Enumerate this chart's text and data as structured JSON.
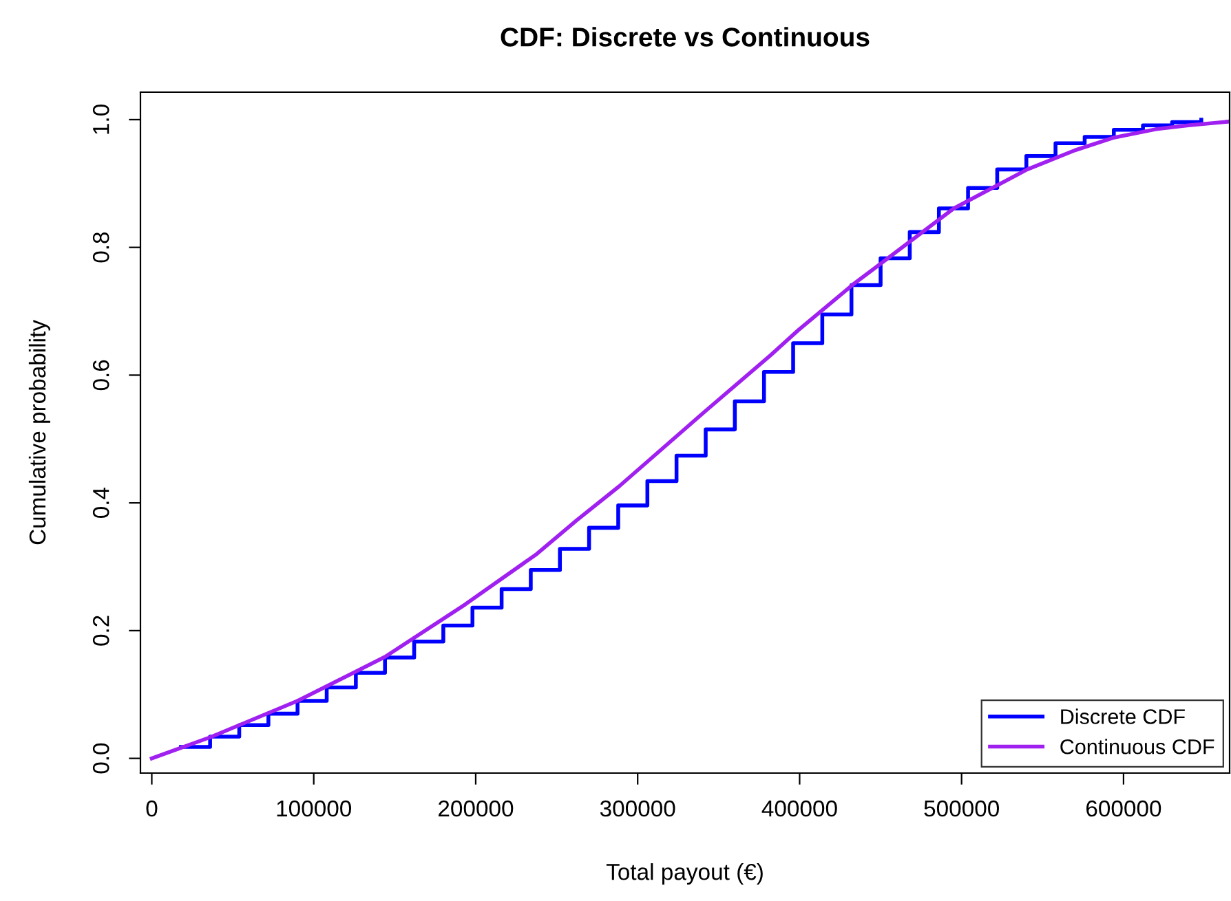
{
  "chart_data": {
    "type": "line",
    "title": "CDF: Discrete vs Continuous",
    "xlabel": "Total payout (€)",
    "ylabel": "Cumulative probability",
    "xlim": [
      -7000,
      665500
    ],
    "xticks": [
      0,
      100000,
      200000,
      300000,
      400000,
      500000,
      600000
    ],
    "ylim": [
      -0.023,
      1.043
    ],
    "yticks": [
      {
        "value": 0,
        "label": "0.0"
      },
      {
        "value": 0.2,
        "label": "0.2"
      },
      {
        "value": 0.4,
        "label": "0.4"
      },
      {
        "value": 0.6,
        "label": "0.6"
      },
      {
        "value": 0.8,
        "label": "0.8"
      },
      {
        "value": 1,
        "label": "1.0"
      }
    ],
    "grid": false,
    "legend": "bottom right",
    "marker": "none",
    "line_style": "solid",
    "series": [
      {
        "name": "Discrete CDF",
        "type": "step",
        "color": "#0000ff",
        "x": [
          18000,
          36000,
          54000,
          72000,
          90000,
          108000,
          126000,
          144000,
          162000,
          180000,
          198000,
          216000,
          234000,
          252000,
          270000,
          288000,
          306000,
          324000,
          342000,
          360000,
          378000,
          396000,
          414000,
          432000,
          450000,
          468000,
          486000,
          504000,
          522000,
          540000,
          558000,
          576000,
          594000,
          612000,
          630000,
          648000
        ],
        "values": [
          0.018,
          0.034,
          0.052,
          0.07,
          0.09,
          0.111,
          0.134,
          0.158,
          0.183,
          0.208,
          0.236,
          0.265,
          0.295,
          0.328,
          0.361,
          0.396,
          0.434,
          0.474,
          0.515,
          0.559,
          0.605,
          0.65,
          0.695,
          0.741,
          0.783,
          0.824,
          0.861,
          0.893,
          0.922,
          0.943,
          0.963,
          0.973,
          0.984,
          0.991,
          0.996,
          1.0
        ]
      },
      {
        "name": "Continuous CDF",
        "color": "#a020f0",
        "x": [
          0,
          36000,
          90000,
          144000,
          193500,
          237700,
          262000,
          288600,
          342400,
          382000,
          399000,
          433000,
          495200,
          540500,
          570000,
          594200,
          620000,
          640000,
          665000
        ],
        "values": [
          0,
          0.033,
          0.09,
          0.159,
          0.241,
          0.32,
          0.372,
          0.426,
          0.545,
          0.631,
          0.67,
          0.742,
          0.861,
          0.922,
          0.952,
          0.972,
          0.985,
          0.991,
          0.997
        ]
      }
    ]
  }
}
